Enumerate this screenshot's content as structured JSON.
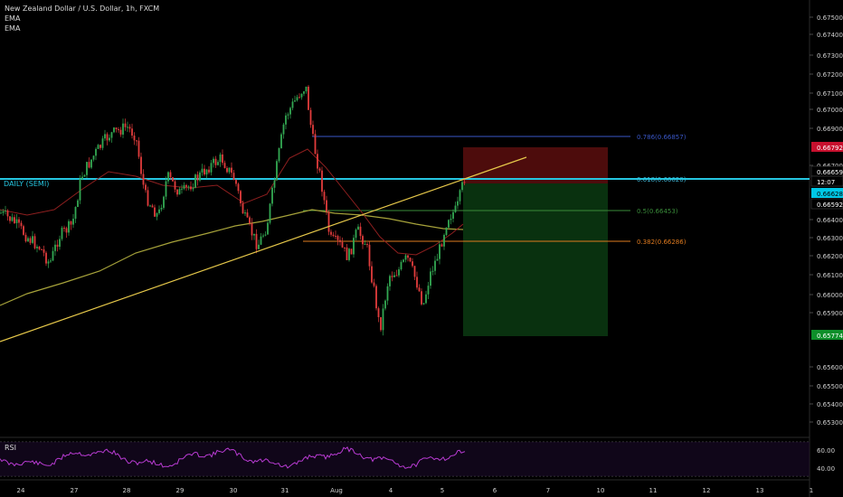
{
  "header": {
    "title": "New Zealand Dollar / U.S. Dollar, 1h, FXCM",
    "indicators": [
      "EMA",
      "EMA"
    ]
  },
  "chart_tag": "DAILY (SEMI)",
  "rsi_label": "RSI",
  "price_axis": [
    "0.67500",
    "0.67400",
    "0.67300",
    "0.67200",
    "0.67100",
    "0.67000",
    "0.66900",
    "0.66700",
    "0.66400",
    "0.66300",
    "0.66200",
    "0.66100",
    "0.66000",
    "0.65900",
    "0.65600",
    "0.65500",
    "0.65400",
    "0.65300"
  ],
  "price_badges": [
    {
      "label": "0.66792",
      "color": "#c8102e"
    },
    {
      "label": "0.66659",
      "color": "#000000"
    },
    {
      "label": "12:07",
      "color": "#000000"
    },
    {
      "label": "0.66628",
      "color": "#00c8e6"
    },
    {
      "label": "0.66592",
      "color": "#000000"
    },
    {
      "label": "0.65774",
      "color": "#0e8f2a"
    }
  ],
  "rsi_axis": [
    "60.00",
    "40.00"
  ],
  "time_axis": [
    "24",
    "27",
    "28",
    "29",
    "30",
    "31",
    "Aug",
    "4",
    "5",
    "6",
    "7",
    "10",
    "11",
    "12",
    "13",
    "1"
  ],
  "fib_levels": [
    {
      "label": "0.786(0.66857)",
      "color": "#3a57c8"
    },
    {
      "label": "0.618(0.66620)",
      "color": "#3fb6d6"
    },
    {
      "label": "0.5(0.66453)",
      "color": "#3a8c3a"
    },
    {
      "label": "0.382(0.66286)",
      "color": "#e07b1f"
    }
  ],
  "colors": {
    "up": "#33a853",
    "down": "#e23c3c",
    "ema_fast": "#c42d2d",
    "ema_slow": "#a6a23a",
    "trend": "#e6c84a",
    "rsi": "#b93bd3"
  }
}
